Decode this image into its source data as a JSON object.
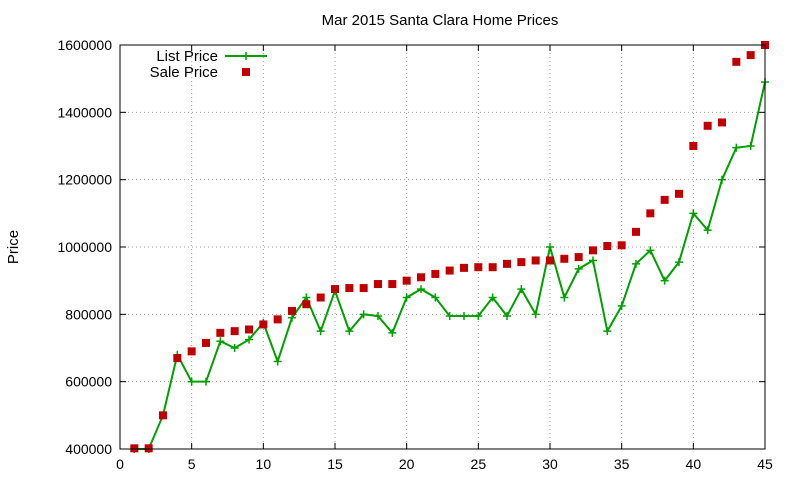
{
  "chart_data": {
    "type": "line",
    "title": "Mar 2015 Santa Clara Home Prices",
    "xlabel": "",
    "ylabel": "Price",
    "xlim": [
      0,
      45
    ],
    "ylim": [
      400000,
      1600000
    ],
    "x_ticks": [
      0,
      5,
      10,
      15,
      20,
      25,
      30,
      35,
      40,
      45
    ],
    "y_ticks": [
      400000,
      600000,
      800000,
      1000000,
      1200000,
      1400000,
      1600000
    ],
    "grid": true,
    "legend_position": "top-left",
    "x": [
      1,
      2,
      3,
      4,
      5,
      6,
      7,
      8,
      9,
      10,
      11,
      12,
      13,
      14,
      15,
      16,
      17,
      18,
      19,
      20,
      21,
      22,
      23,
      24,
      25,
      26,
      27,
      28,
      29,
      30,
      31,
      32,
      33,
      34,
      35,
      36,
      37,
      38,
      39,
      40,
      41,
      42,
      43,
      44,
      45
    ],
    "series": [
      {
        "name": "List Price",
        "style": "line-points",
        "color": "#00a000",
        "values": [
          400000,
          400000,
          500000,
          680000,
          600000,
          600000,
          720000,
          700000,
          725000,
          775000,
          660000,
          790000,
          850000,
          750000,
          870000,
          750000,
          800000,
          795000,
          745000,
          850000,
          875000,
          850000,
          795000,
          795000,
          795000,
          850000,
          795000,
          875000,
          800000,
          1000000,
          850000,
          935000,
          960000,
          750000,
          825000,
          950000,
          990000,
          900000,
          955000,
          1100000,
          1050000,
          1200000,
          1295000,
          1300000,
          1490000
        ]
      },
      {
        "name": "Sale Price",
        "style": "points",
        "color": "#c00000",
        "values": [
          402000,
          402000,
          500000,
          670000,
          690000,
          715000,
          745000,
          750000,
          755000,
          770000,
          785000,
          810000,
          830000,
          850000,
          875000,
          878000,
          878000,
          890000,
          890000,
          900000,
          910000,
          920000,
          930000,
          938000,
          940000,
          940000,
          950000,
          955000,
          960000,
          960000,
          965000,
          970000,
          990000,
          1003000,
          1005000,
          1045000,
          1100000,
          1140000,
          1158000,
          1300000,
          1360000,
          1370000,
          1550000,
          1570000,
          1600000
        ]
      }
    ]
  }
}
